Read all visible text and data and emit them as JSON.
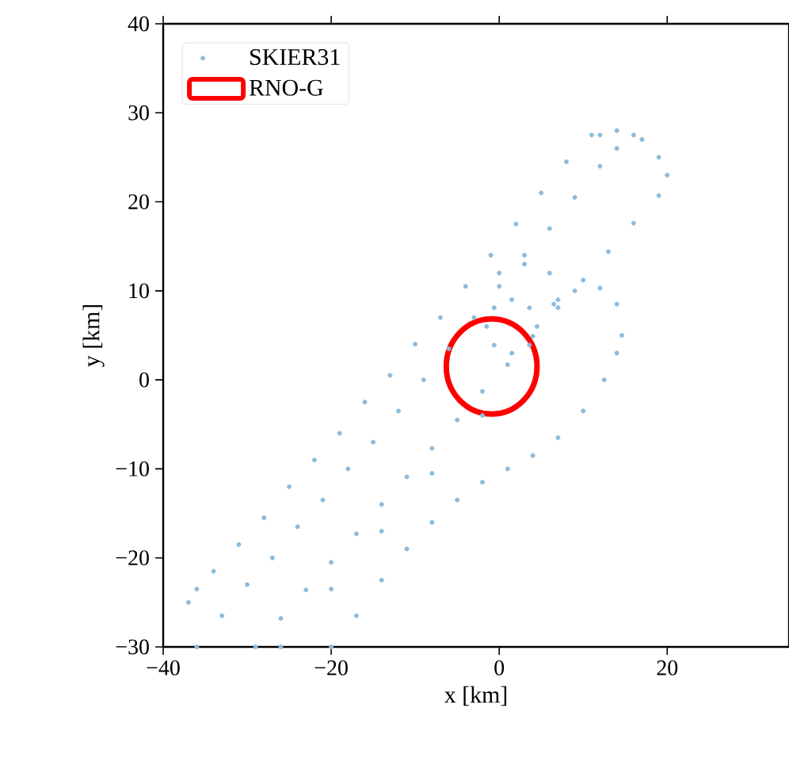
{
  "chart_data": {
    "type": "scatter",
    "xlabel": "x [km]",
    "ylabel": "y [km]",
    "xlim": [
      -40,
      34.5
    ],
    "ylim": [
      -30,
      40
    ],
    "xticks": [
      {
        "value": -40,
        "label": "−40"
      },
      {
        "value": -20,
        "label": "−20"
      },
      0,
      20
    ],
    "yticks": [
      {
        "value": -30,
        "label": "−30"
      },
      {
        "value": -20,
        "label": "−20"
      },
      {
        "value": -10,
        "label": "−10"
      },
      0,
      10,
      20,
      30,
      40
    ],
    "legend": "top left",
    "annotations": [
      "RNO-G"
    ],
    "series": [
      {
        "name": "SKIER31",
        "color": "#8dbbdc",
        "x": [
          -29,
          -26,
          -23,
          -20,
          -17,
          -14,
          -11,
          -8,
          -5,
          -2,
          1,
          4,
          7,
          10,
          13,
          16,
          19,
          20,
          19,
          17,
          14,
          12,
          11,
          8,
          5,
          2,
          -1,
          -4,
          -7,
          -10,
          -13,
          -16,
          -19,
          -22,
          -25,
          -28,
          -31,
          -34,
          -36,
          -37,
          -36,
          -33,
          -30,
          -27,
          -24,
          -21,
          -18,
          -15,
          -12,
          -9,
          -6,
          -3,
          0,
          3,
          6,
          9,
          12,
          14,
          16,
          4.5,
          3.6,
          1.5,
          -0.6,
          -1.5,
          -0.6,
          1.5,
          3.6,
          7,
          6,
          3,
          0,
          -20,
          -17,
          -14,
          -11,
          -8,
          -5,
          -2,
          1,
          4,
          7,
          10,
          12.5,
          14,
          14.6,
          14,
          12,
          9,
          6.5,
          -26,
          -20,
          -14,
          -8,
          -2
        ],
        "values": [
          -30,
          -26.8,
          -23.6,
          -20.5,
          -17.3,
          -14,
          -10.9,
          -7.7,
          -4.5,
          -1.3,
          1.7,
          4.9,
          8.1,
          11.2,
          14.4,
          17.6,
          20.7,
          23,
          25,
          27,
          28,
          27.5,
          27.5,
          24.5,
          21,
          17.5,
          14,
          10.5,
          7,
          4,
          0.5,
          -2.5,
          -6,
          -9,
          -12,
          -15.5,
          -18.5,
          -21.5,
          -23.5,
          -25,
          -30,
          -26.5,
          -23,
          -20,
          -16.5,
          -13.5,
          -10,
          -7,
          -3.5,
          0,
          3.5,
          7,
          10.5,
          14,
          17,
          20.5,
          24,
          26,
          27.5,
          6,
          8.1,
          9,
          8.1,
          6,
          3.9,
          3,
          3.9,
          9,
          12,
          13,
          12,
          -30,
          -26.5,
          -22.5,
          -19,
          -16,
          -13.5,
          -11.5,
          -10,
          -8.5,
          -6.5,
          -3.5,
          0,
          3,
          5,
          8.5,
          10.3,
          10,
          8.5,
          -30,
          -23.5,
          -17,
          -10.5,
          -4
        ]
      }
    ]
  }
}
